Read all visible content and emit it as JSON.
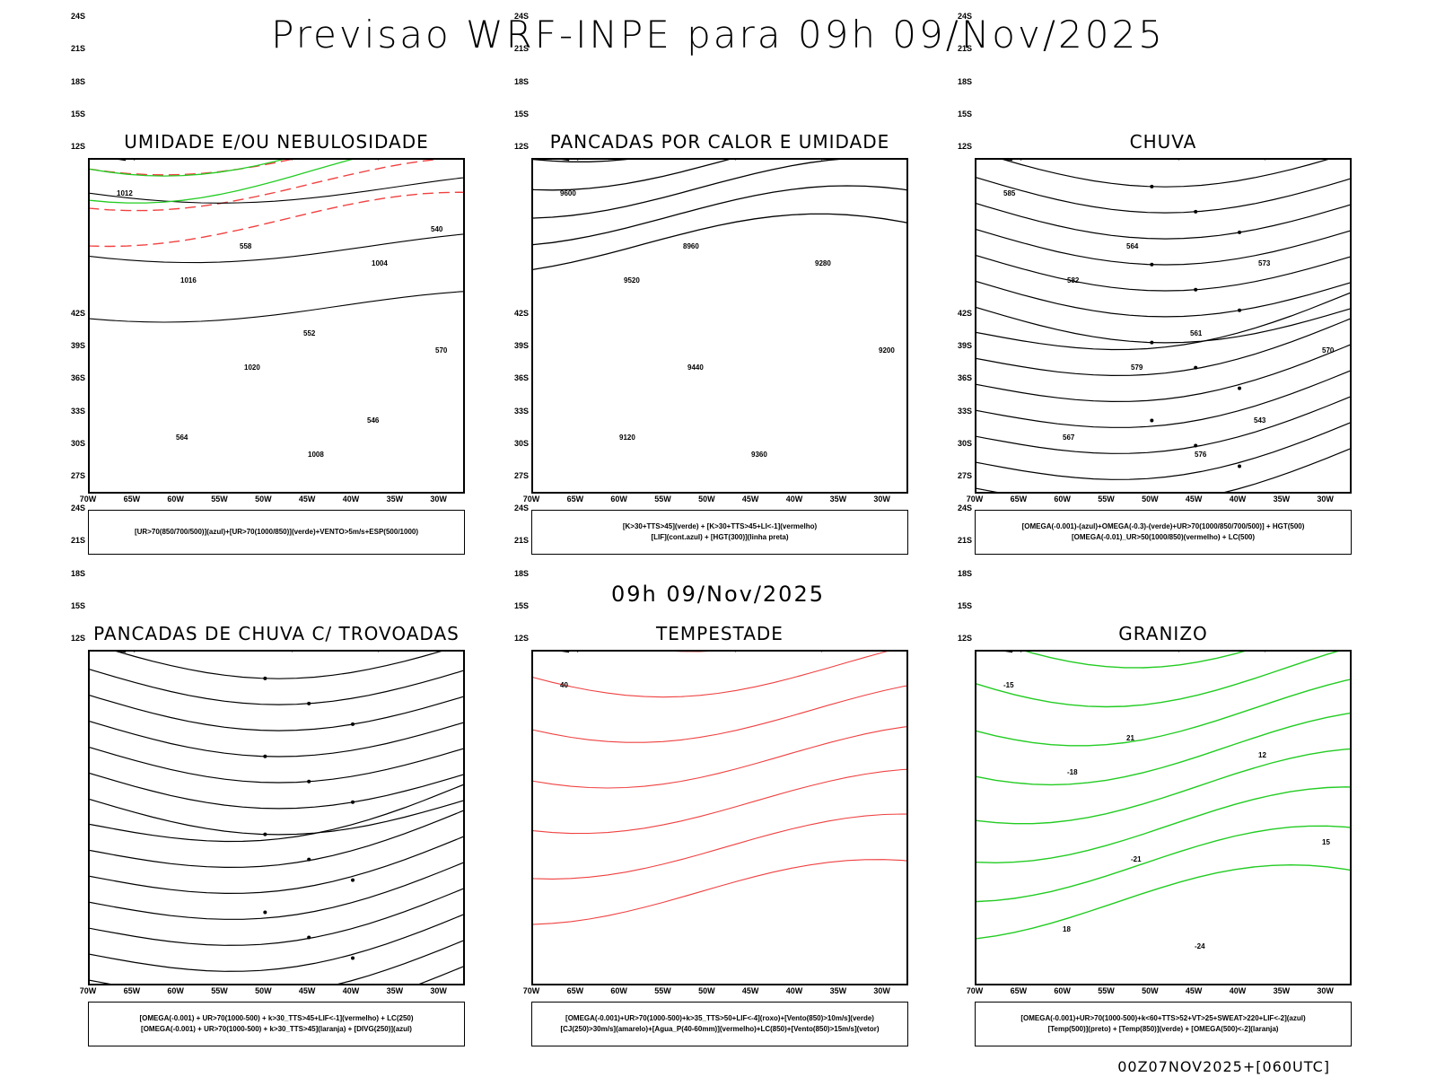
{
  "title": "Previsao WRF-INPE  para 09h 09/Nov/2025",
  "mid_title": "09h 09/Nov/2025",
  "footer": "00Z07NOV2025+[060UTC]",
  "lat_ticks": [
    "12S",
    "15S",
    "18S",
    "21S",
    "24S",
    "27S",
    "30S",
    "33S",
    "36S",
    "39S",
    "42S"
  ],
  "lon_ticks": [
    "70W",
    "65W",
    "60W",
    "55W",
    "50W",
    "45W",
    "40W",
    "35W",
    "30W"
  ],
  "colors": {
    "red": "#f04040",
    "green": "#22cc22",
    "blue": "#2040e0",
    "lavender": "#a8a8f0",
    "yellow": "#e6dc30",
    "purple": "#9020c0",
    "orange": "#f08020",
    "darkteal": "#305050"
  },
  "panels": [
    {
      "id": "umidade",
      "title": "UMIDADE E/OU NEBULOSIDADE",
      "legend": [
        "[UR>70(850/700/500)](azul)+[UR>70(1000/850)](verde)+VENTO>5m/s+ESP(500/1000)"
      ],
      "labels": [
        "1012",
        "1016",
        "1020",
        "1008",
        "1004",
        "570",
        "564",
        "558",
        "552",
        "546",
        "540"
      ]
    },
    {
      "id": "pancadas-calor",
      "title": "PANCADAS POR CALOR E UMIDADE",
      "legend": [
        "[K>30+TTS>45](verde) + [K>30+TTS>45+LI<-1](vermelho)",
        "[LIF](cont.azul) + [HGT(300)](linha preta)"
      ],
      "labels": [
        "9600",
        "9520",
        "9440",
        "9360",
        "9280",
        "9200",
        "9120",
        "8960"
      ]
    },
    {
      "id": "chuva",
      "title": "CHUVA",
      "legend": [
        "[OMEGA(-0.001)-(azul)+OMEGA(-0.3)-(verde)+UR>70(1000/850/700/500)] + HGT(500)",
        "[OMEGA(-0.01)_UR>50(1000/850)(vermelho) + LC(500)"
      ],
      "labels": [
        "585",
        "582",
        "579",
        "576",
        "573",
        "570",
        "567",
        "564",
        "561",
        "543"
      ]
    },
    {
      "id": "trovoadas",
      "title": "PANCADAS DE CHUVA C/ TROVOADAS",
      "legend": [
        "[OMEGA(-0.001) + UR>70(1000-500) + k>30_TTS>45+LIF<-1](vermelho) + LC(250)",
        "[OMEGA(-0.001) + UR>70(1000-500) + k>30_TTS>45](laranja) + [DIVG(250)](azul)"
      ],
      "labels": []
    },
    {
      "id": "tempestade",
      "title": "TEMPESTADE",
      "legend": [
        "[OMEGA(-0.001)+UR>70(1000-500)+k>35_TTS>50+LIF<-4](roxo)+[Vento(850)>10m/s](verde)",
        "[CJ(250)>30m/s](amarelo)+[Agua_P(40-60mm)](vermelho)+LC(850)+[Vento(850)>15m/s](vetor)"
      ],
      "labels": [
        "40"
      ]
    },
    {
      "id": "granizo",
      "title": "GRANIZO",
      "legend": [
        "[OMEGA(-0.001)+UR>70(1000-500)+k<60+TTS>52+VT>25+SWEAT>220+LIF<-2](azul)",
        "[Temp(500)](preto) + [Temp(850)](verde) + [OMEGA(500)<-2](laranja)"
      ],
      "labels": [
        "-15",
        "-18",
        "-21",
        "-24",
        "12",
        "15",
        "18",
        "21"
      ]
    }
  ]
}
